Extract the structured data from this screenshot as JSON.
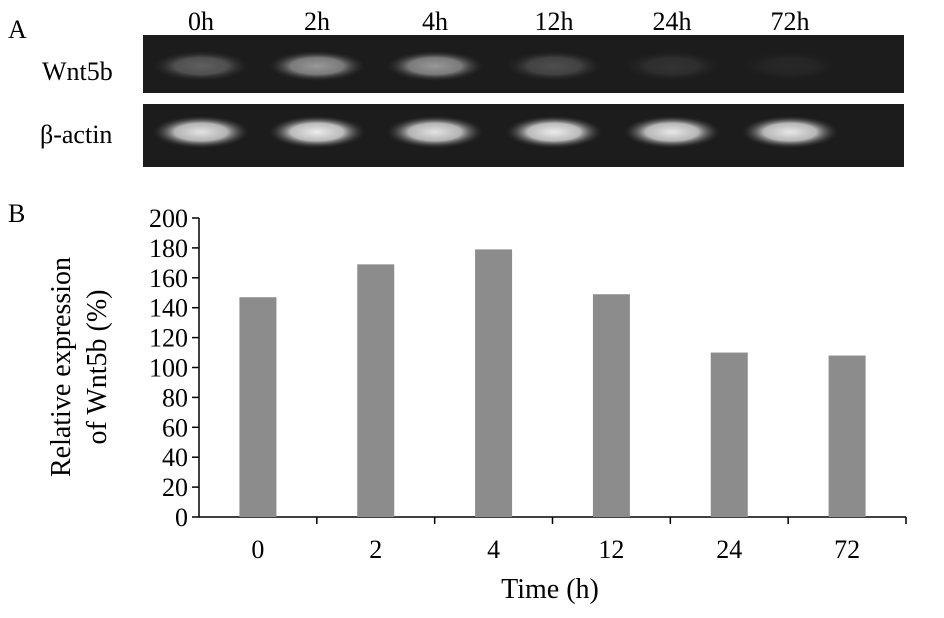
{
  "panel_a": {
    "label": "A",
    "lanes": [
      "0h",
      "2h",
      "4h",
      "12h",
      "24h",
      "72h"
    ],
    "rows": [
      {
        "label": "Wnt5b",
        "intensities": [
          0.3,
          0.55,
          0.55,
          0.22,
          0.1,
          0.05
        ]
      },
      {
        "label": "β-actin",
        "intensities": [
          0.88,
          0.92,
          0.88,
          0.92,
          0.9,
          0.9
        ]
      }
    ]
  },
  "panel_b": {
    "label": "B"
  },
  "chart_data": {
    "type": "bar",
    "categories": [
      "0",
      "2",
      "4",
      "12",
      "24",
      "72"
    ],
    "values": [
      147,
      169,
      179,
      149,
      110,
      108
    ],
    "title": "",
    "xlabel": "Time (h)",
    "ylabel": [
      "Relative expression",
      "of Wnt5b (%)"
    ],
    "ylim": [
      0,
      200
    ],
    "yticks": [
      0,
      20,
      40,
      60,
      80,
      100,
      120,
      140,
      160,
      180,
      200
    ],
    "bar_color": "#8c8c8c",
    "grid": false,
    "legend": "none"
  }
}
